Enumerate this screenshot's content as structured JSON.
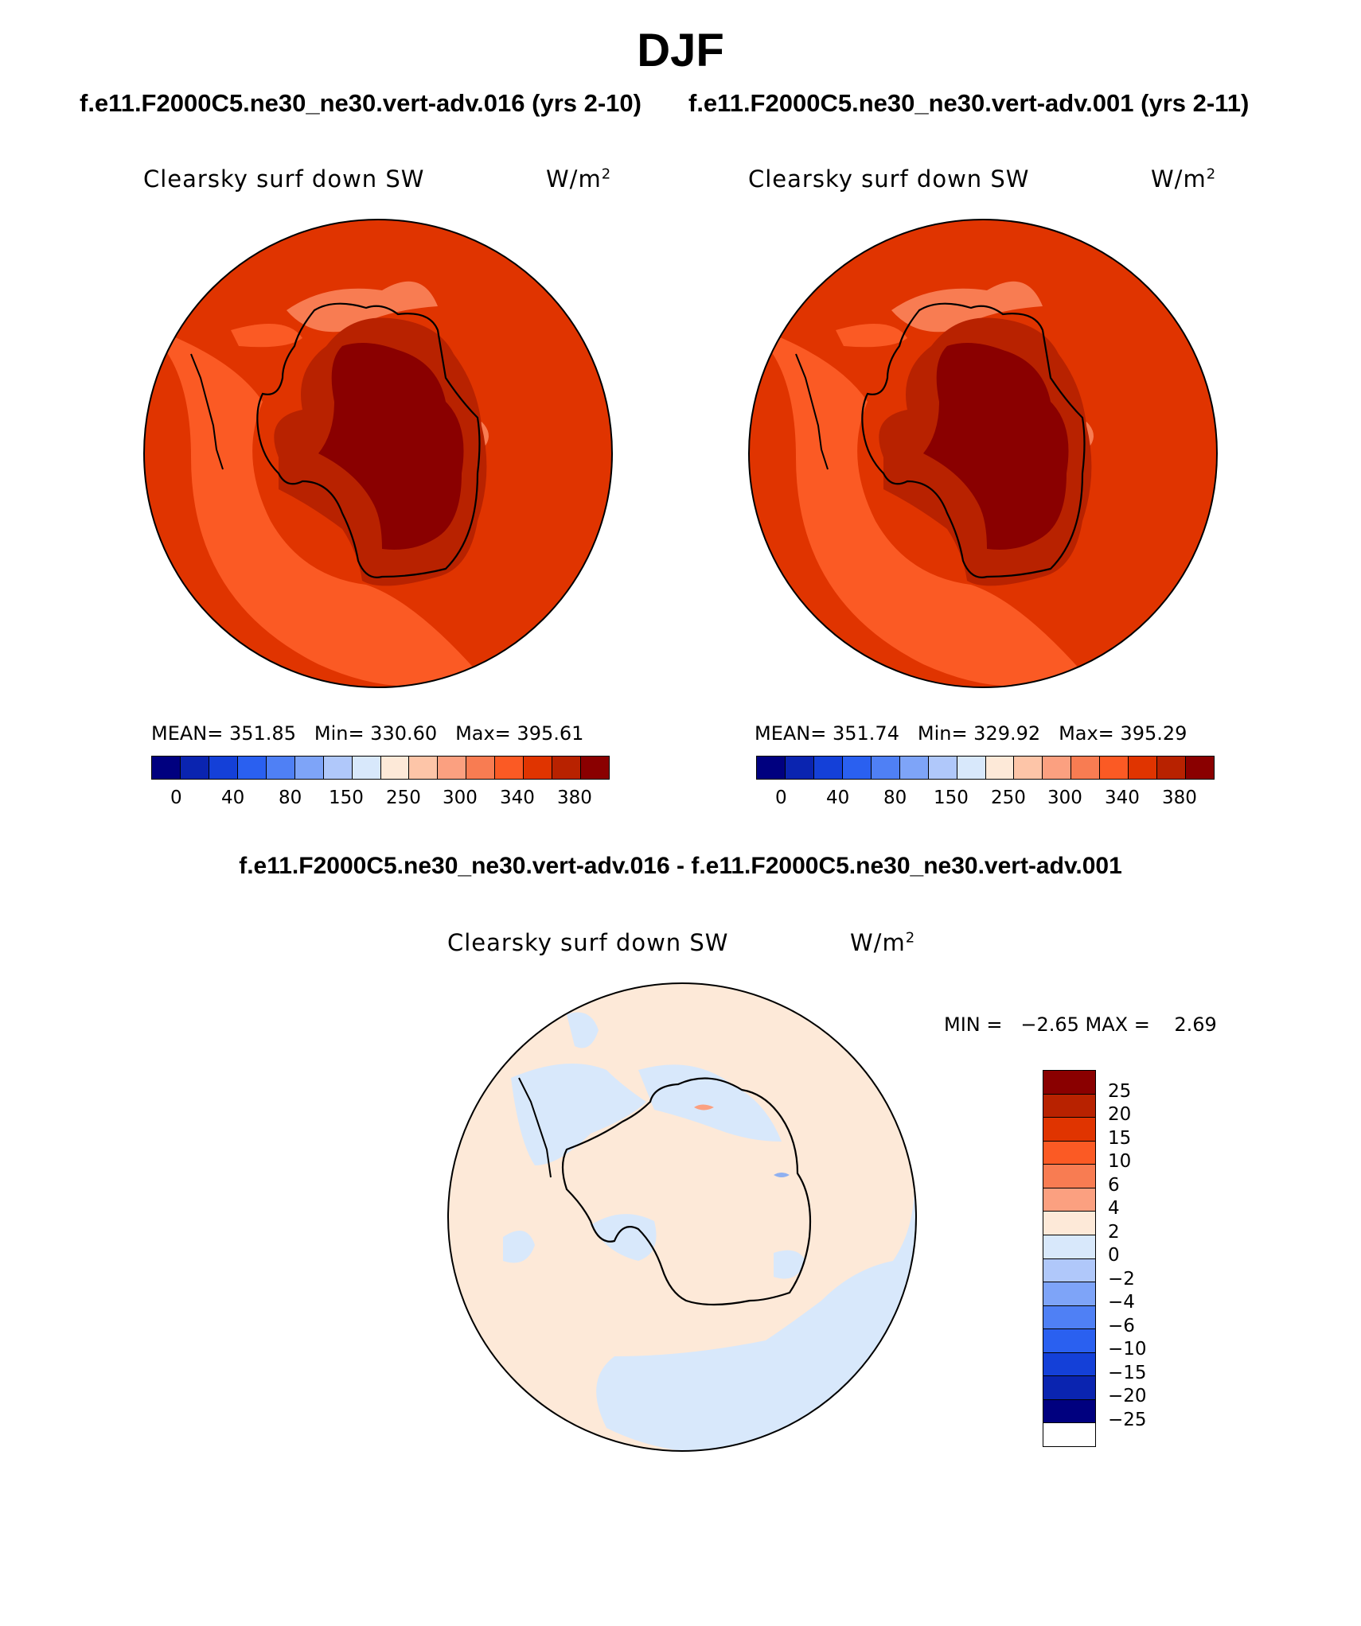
{
  "season": "DJF",
  "panels": {
    "left": {
      "case": "f.e11.F2000C5.ne30_ne30.vert-adv.016 (yrs 2-10)",
      "field": "Clearsky surf down SW",
      "units": "W/m",
      "units_sup": "2",
      "mean": "MEAN= 351.85",
      "min": "Min= 330.60",
      "max": "Max= 395.61"
    },
    "right": {
      "case": "f.e11.F2000C5.ne30_ne30.vert-adv.001 (yrs 2-11)",
      "field": "Clearsky surf down SW",
      "units": "W/m",
      "units_sup": "2",
      "mean": "MEAN= 351.74",
      "min": "Min= 329.92",
      "max": "Max= 395.29"
    },
    "diff": {
      "title": "f.e11.F2000C5.ne30_ne30.vert-adv.016 - f.e11.F2000C5.ne30_ne30.vert-adv.001",
      "field": "Clearsky surf down SW",
      "units": "W/m",
      "units_sup": "2",
      "minmax": "MIN =   −2.65 MAX =    2.69"
    }
  },
  "colorbar_abs": {
    "tick_labels": [
      "0",
      "40",
      "80",
      "150",
      "250",
      "300",
      "340",
      "380"
    ],
    "colors": [
      "#00007f",
      "#0a24b0",
      "#1440d8",
      "#2a60f0",
      "#4f80f5",
      "#7ea4f8",
      "#b0c8fa",
      "#d8e8fb",
      "#fde9d8",
      "#fdc5a8",
      "#fba080",
      "#f87c52",
      "#fb5a24",
      "#e03400",
      "#b82200",
      "#8a0000"
    ]
  },
  "colorbar_diff": {
    "tick_labels": [
      "25",
      "20",
      "15",
      "10",
      "6",
      "4",
      "2",
      "0",
      "−2",
      "−4",
      "−6",
      "−10",
      "−15",
      "−20",
      "−25"
    ],
    "colors": [
      "#8a0000",
      "#b82200",
      "#e03400",
      "#fb5a24",
      "#f87c52",
      "#fba080",
      "#fde9d8",
      "#d8e8fb",
      "#b0c8fa",
      "#7ea4f8",
      "#4f80f5",
      "#2a60f0",
      "#1440d8",
      "#0a24b0",
      "#00007f"
    ]
  },
  "map_colors": {
    "abs_outer": "#fb5a24",
    "abs_band": "#e03400",
    "abs_ring": "#b82200",
    "abs_core": "#8a0000",
    "abs_patch": "#f87c52",
    "diff_bg": "#fde9d8",
    "diff_neg": "#d8e8fb",
    "diff_neg2": "#8fb0f0",
    "diff_pos": "#fba080"
  }
}
